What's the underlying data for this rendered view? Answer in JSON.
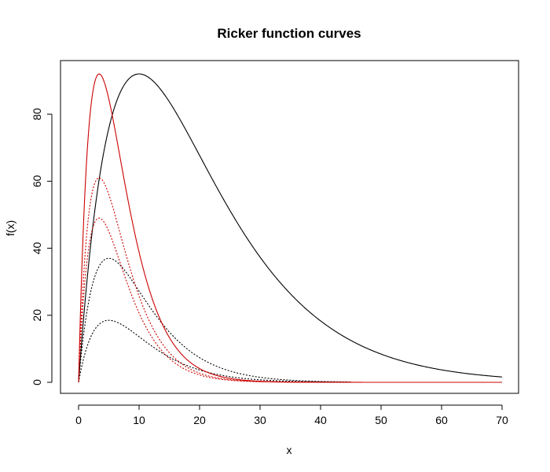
{
  "chart_data": {
    "type": "line",
    "title": "Ricker function curves",
    "xlabel": "x",
    "ylabel": "f(x)",
    "xlim": [
      0,
      70
    ],
    "ylim": [
      0,
      92
    ],
    "xticks": [
      0,
      10,
      20,
      30,
      40,
      50,
      60,
      70
    ],
    "yticks": [
      0,
      20,
      40,
      60,
      80
    ],
    "grid": false,
    "series": [
      {
        "color": "#000000",
        "dash": "solid",
        "x_range": [
          0,
          70
        ],
        "values": {
          "peak_x": 10,
          "peak_y": 92
        }
      },
      {
        "color": "#000000",
        "dash": "dotted",
        "x_range": [
          0,
          45
        ],
        "values": {
          "peak_x": 5,
          "peak_y": 37
        }
      },
      {
        "color": "#000000",
        "dash": "dotted",
        "x_range": [
          0,
          45
        ],
        "values": {
          "peak_x": 5,
          "peak_y": 18.5
        }
      },
      {
        "color": "#cc0000",
        "dash": "solid",
        "x_range": [
          0,
          70
        ],
        "values": {
          "peak_x": 3.4,
          "peak_y": 92
        }
      },
      {
        "color": "#cc0000",
        "dash": "dotted",
        "x_range": [
          0,
          45
        ],
        "values": {
          "peak_x": 3.4,
          "peak_y": 61
        }
      },
      {
        "color": "#cc0000",
        "dash": "dotted",
        "x_range": [
          0,
          45
        ],
        "values": {
          "peak_x": 3.4,
          "peak_y": 49
        }
      }
    ]
  }
}
